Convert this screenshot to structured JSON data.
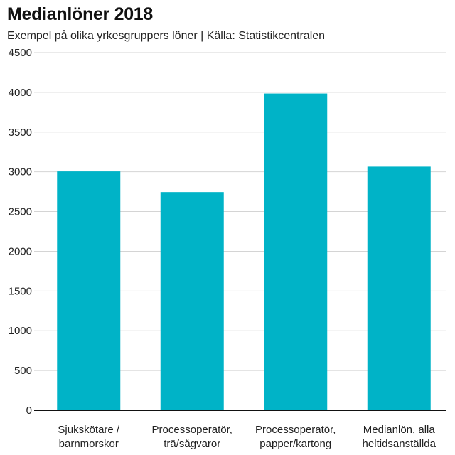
{
  "chart_data": {
    "type": "bar",
    "title": "Medianlöner 2018",
    "subtitle": "Exempel på olika yrkesgruppers löner | Källa: Statistikcentralen",
    "categories": [
      [
        "Sjukskötare /",
        "barnmorskor"
      ],
      [
        "Processoperatör,",
        "trä/sågvaror"
      ],
      [
        "Processoperatör,",
        "papper/kartong"
      ],
      [
        "Medianlön, alla",
        "heltidsanställda"
      ]
    ],
    "values": [
      3005,
      2745,
      3985,
      3065
    ],
    "xlabel": "",
    "ylabel": "",
    "ylim": [
      0,
      4500
    ],
    "yticks": [
      0,
      500,
      1000,
      1500,
      2000,
      2500,
      3000,
      3500,
      4000,
      4500
    ],
    "grid": true,
    "legend": "none",
    "colors": {
      "bar": "#00b3c7",
      "grid": "#d4d4d4",
      "axis": "#111111"
    }
  }
}
